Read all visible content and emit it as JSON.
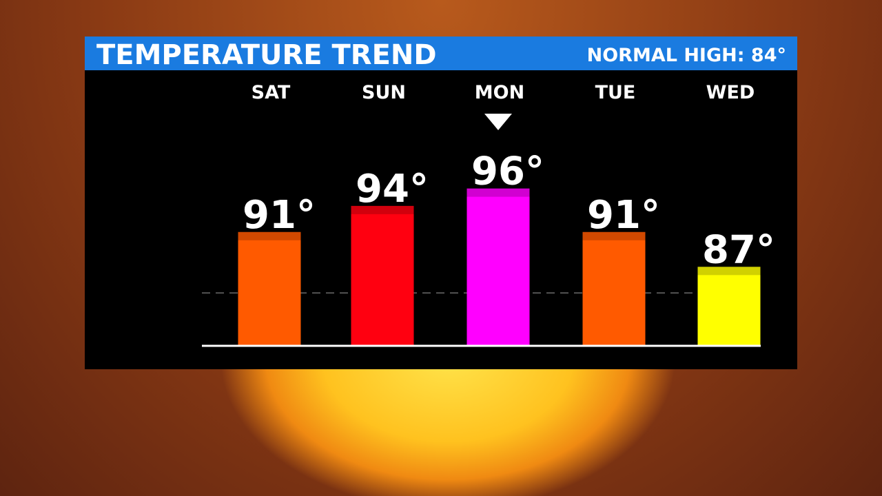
{
  "chart_data": {
    "type": "bar",
    "title": "TEMPERATURE TREND",
    "normal_high": {
      "value": 84,
      "label": "NORMAL HIGH: 84°"
    },
    "categories": [
      "SAT",
      "SUN",
      "MON",
      "TUE",
      "WED"
    ],
    "values": [
      91,
      94,
      96,
      91,
      87
    ],
    "value_labels": [
      "91°",
      "94°",
      "96°",
      "91°",
      "87°"
    ],
    "colors": [
      "#ff5a00",
      "#ff0010",
      "#ff00ff",
      "#ff5a00",
      "#ffff00"
    ],
    "ylim": [
      78,
      97
    ]
  }
}
